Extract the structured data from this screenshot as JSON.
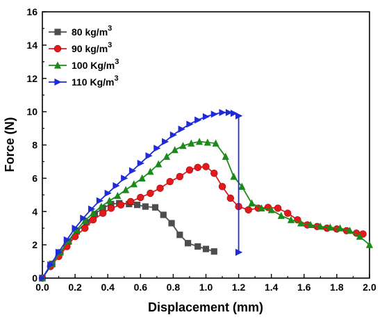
{
  "chart_data": {
    "type": "line",
    "xlabel": "Displacement (mm)",
    "ylabel": "Force (N)",
    "xlim": [
      0,
      2.0
    ],
    "ylim": [
      0,
      16
    ],
    "x_ticks": [
      "0.0",
      "0.2",
      "0.4",
      "0.6",
      "0.8",
      "1.0",
      "1.2",
      "1.4",
      "1.6",
      "1.8",
      "2.0"
    ],
    "y_ticks": [
      "0",
      "2",
      "4",
      "6",
      "8",
      "10",
      "12",
      "14",
      "16"
    ],
    "grid": false,
    "legend_position": "top-left",
    "series": [
      {
        "name": "80 kg/m",
        "sup": "3",
        "color": "#4d4d4d",
        "marker": "square",
        "x": [
          0.0,
          0.06,
          0.11,
          0.16,
          0.21,
          0.27,
          0.32,
          0.37,
          0.42,
          0.47,
          0.53,
          0.58,
          0.63,
          0.69,
          0.74,
          0.79,
          0.84,
          0.89,
          0.95,
          1.0,
          1.05
        ],
        "y": [
          0.0,
          0.85,
          1.55,
          2.2,
          2.8,
          3.35,
          3.85,
          4.2,
          4.45,
          4.5,
          4.45,
          4.4,
          4.3,
          4.25,
          3.8,
          3.3,
          2.6,
          2.1,
          1.9,
          1.75,
          1.6
        ]
      },
      {
        "name": "90 kg/m",
        "sup": "3",
        "color": "#e31a1c",
        "marker": "circle",
        "x": [
          0.0,
          0.05,
          0.1,
          0.15,
          0.2,
          0.26,
          0.31,
          0.37,
          0.42,
          0.48,
          0.54,
          0.6,
          0.66,
          0.72,
          0.78,
          0.84,
          0.9,
          0.95,
          1.0,
          1.05,
          1.1,
          1.15,
          1.2,
          1.26,
          1.32,
          1.38,
          1.44,
          1.5,
          1.56,
          1.62,
          1.68,
          1.74,
          1.8,
          1.86,
          1.92,
          1.96
        ],
        "y": [
          0.0,
          0.7,
          1.3,
          1.9,
          2.5,
          3.0,
          3.5,
          3.9,
          4.2,
          4.4,
          4.6,
          4.85,
          5.1,
          5.4,
          5.8,
          6.1,
          6.5,
          6.65,
          6.7,
          6.3,
          5.5,
          4.8,
          4.3,
          4.1,
          4.2,
          4.25,
          4.2,
          3.9,
          3.5,
          3.2,
          3.1,
          3.0,
          2.95,
          2.85,
          2.7,
          2.65
        ]
      },
      {
        "name": "100 Kg/m",
        "sup": "3",
        "color": "#1a8a1a",
        "marker": "triangle-up",
        "x": [
          0.0,
          0.06,
          0.11,
          0.16,
          0.21,
          0.26,
          0.31,
          0.36,
          0.41,
          0.46,
          0.51,
          0.56,
          0.61,
          0.66,
          0.71,
          0.76,
          0.81,
          0.86,
          0.91,
          0.96,
          1.01,
          1.06,
          1.12,
          1.17,
          1.22,
          1.28,
          1.34,
          1.4,
          1.46,
          1.52,
          1.58,
          1.64,
          1.7,
          1.76,
          1.82,
          1.88,
          1.94,
          2.0
        ],
        "y": [
          0.0,
          0.85,
          1.55,
          2.25,
          2.9,
          3.45,
          3.9,
          4.3,
          4.65,
          4.95,
          5.3,
          5.65,
          6.0,
          6.4,
          6.85,
          7.3,
          7.7,
          7.95,
          8.1,
          8.2,
          8.15,
          8.1,
          7.3,
          6.1,
          5.5,
          4.5,
          4.2,
          4.1,
          3.75,
          3.5,
          3.3,
          3.2,
          3.1,
          3.05,
          3.0,
          2.85,
          2.5,
          2.0
        ]
      },
      {
        "name": "110 Kg/m",
        "sup": "3",
        "color": "#1f2bd6",
        "marker": "triangle-right",
        "x": [
          0.0,
          0.05,
          0.1,
          0.15,
          0.2,
          0.25,
          0.3,
          0.35,
          0.4,
          0.45,
          0.5,
          0.55,
          0.6,
          0.65,
          0.7,
          0.75,
          0.8,
          0.85,
          0.9,
          0.95,
          1.0,
          1.05,
          1.1,
          1.14,
          1.17,
          1.2,
          1.2,
          1.2,
          1.2,
          1.2,
          1.2,
          1.2,
          1.2
        ],
        "y": [
          0.0,
          0.8,
          1.55,
          2.3,
          3.0,
          3.6,
          4.15,
          4.65,
          5.1,
          5.55,
          6.0,
          6.45,
          6.9,
          7.35,
          7.8,
          8.2,
          8.6,
          8.95,
          9.25,
          9.5,
          9.7,
          9.85,
          9.95,
          9.95,
          9.9,
          9.75,
          8.0,
          6.0,
          4.0,
          3.0,
          2.2,
          1.8,
          1.55
        ]
      }
    ]
  }
}
